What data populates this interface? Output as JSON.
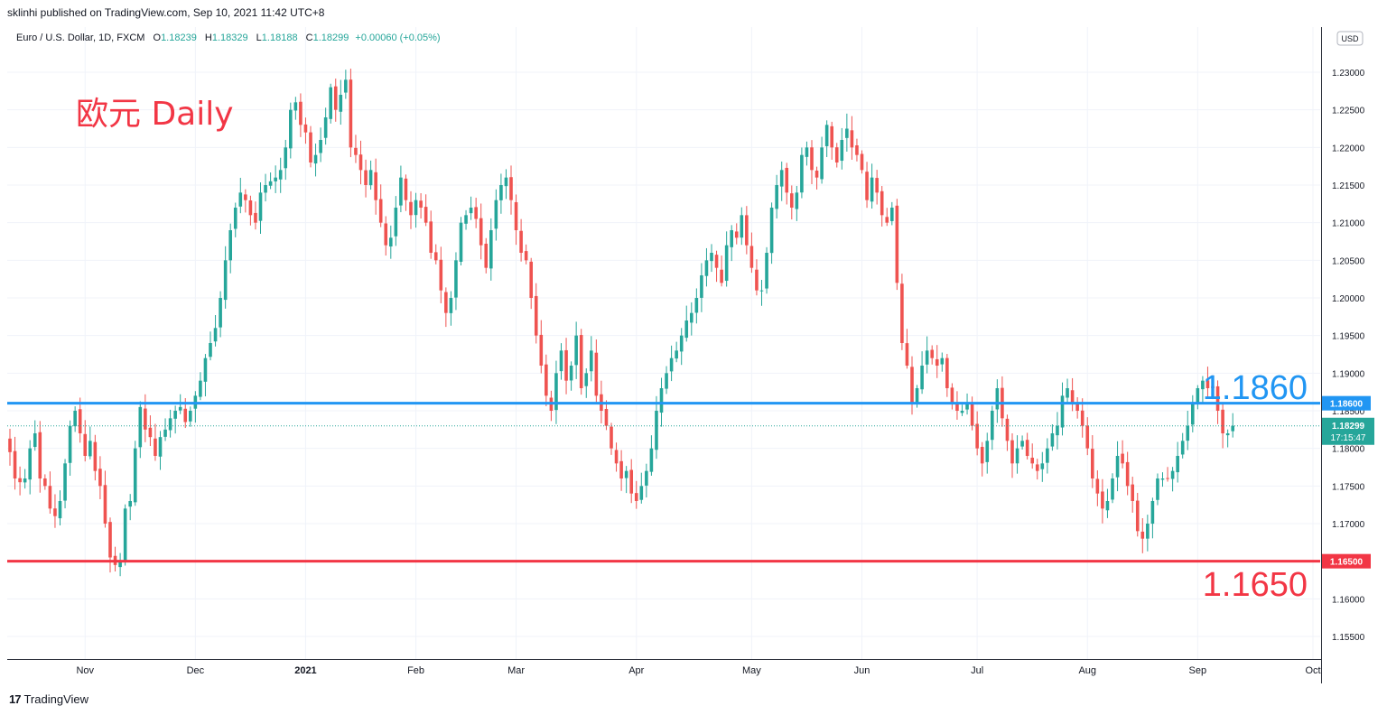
{
  "header": {
    "published": "sklinhi published on TradingView.com, Sep 10, 2021 11:42 UTC+8"
  },
  "legend": {
    "symbol": "Euro / U.S. Dollar, 1D, FXCM",
    "open_label": "O",
    "open": "1.18239",
    "high_label": "H",
    "high": "1.18329",
    "low_label": "L",
    "low": "1.18188",
    "close_label": "C",
    "close": "1.18299",
    "change": "+0.00060 (+0.05%)"
  },
  "footer": {
    "brand": "TradingView",
    "logo_mark": "17"
  },
  "currency_button": "USD",
  "colors": {
    "up": "#26a69a",
    "down": "#ef5350",
    "blue_line": "#2196f3",
    "red_line": "#f23645",
    "label_green": "#26a69a",
    "grid": "#f0f3fa",
    "axis_text": "#131722"
  },
  "chart_data": {
    "type": "candlestick",
    "title": "欧元 Daily",
    "yaxis": {
      "min": 1.152,
      "max": 1.236,
      "ticks": [
        "1.15500",
        "1.16000",
        "1.16500",
        "1.17000",
        "1.17500",
        "1.18000",
        "1.18500",
        "1.19000",
        "1.19500",
        "1.20000",
        "1.20500",
        "1.21000",
        "1.21500",
        "1.22000",
        "1.22500",
        "1.23000"
      ]
    },
    "xaxis": {
      "labels": [
        "Nov",
        "Dec",
        "2021",
        "Feb",
        "Mar",
        "Apr",
        "May",
        "Jun",
        "Jul",
        "Aug",
        "Sep",
        "Oct"
      ],
      "label_index": [
        15,
        37,
        59,
        81,
        101,
        125,
        148,
        170,
        193,
        215,
        237,
        260
      ]
    },
    "horizontal_lines": [
      {
        "value": 1.186,
        "label": "1.1860",
        "axis_label": "1.18600",
        "color": "#2196f3"
      },
      {
        "value": 1.165,
        "label": "1.1650",
        "axis_label": "1.16500",
        "color": "#f23645"
      }
    ],
    "last_price": {
      "value": 1.18299,
      "label": "1.18299",
      "countdown": "17:15:47"
    },
    "closes": [
      1.1795,
      1.176,
      1.1755,
      1.176,
      1.18,
      1.182,
      1.176,
      1.175,
      1.172,
      1.171,
      1.173,
      1.178,
      1.183,
      1.185,
      1.182,
      1.179,
      1.181,
      1.177,
      1.175,
      1.17,
      1.1655,
      1.1645,
      1.165,
      1.172,
      1.173,
      1.18,
      1.1855,
      1.1825,
      1.1815,
      1.179,
      1.1815,
      1.1825,
      1.184,
      1.185,
      1.1855,
      1.1835,
      1.185,
      1.187,
      1.189,
      1.192,
      1.194,
      1.196,
      1.2,
      1.205,
      1.209,
      1.212,
      1.214,
      1.213,
      1.211,
      1.21,
      1.214,
      1.215,
      1.2155,
      1.216,
      1.217,
      1.22,
      1.225,
      1.226,
      1.223,
      1.222,
      1.218,
      1.219,
      1.221,
      1.224,
      1.228,
      1.225,
      1.227,
      1.229,
      1.22,
      1.219,
      1.217,
      1.215,
      1.217,
      1.213,
      1.21,
      1.207,
      1.208,
      1.212,
      1.216,
      1.213,
      1.211,
      1.213,
      1.212,
      1.21,
      1.206,
      1.205,
      1.201,
      1.198,
      1.2,
      1.205,
      1.21,
      1.211,
      1.212,
      1.2105,
      1.207,
      1.204,
      1.209,
      1.213,
      1.215,
      1.216,
      1.213,
      1.209,
      1.206,
      1.205,
      1.2,
      1.195,
      1.191,
      1.187,
      1.185,
      1.19,
      1.193,
      1.189,
      1.191,
      1.195,
      1.188,
      1.19,
      1.193,
      1.187,
      1.185,
      1.183,
      1.18,
      1.178,
      1.176,
      1.177,
      1.174,
      1.173,
      1.175,
      1.177,
      1.18,
      1.185,
      1.188,
      1.19,
      1.192,
      1.193,
      1.195,
      1.197,
      1.198,
      1.2,
      1.203,
      1.205,
      1.206,
      1.204,
      1.202,
      1.207,
      1.209,
      1.208,
      1.211,
      1.207,
      1.204,
      1.201,
      1.201,
      1.206,
      1.212,
      1.215,
      1.217,
      1.214,
      1.212,
      1.214,
      1.219,
      1.22,
      1.217,
      1.216,
      1.22,
      1.223,
      1.22,
      1.218,
      1.221,
      1.2225,
      1.22,
      1.219,
      1.217,
      1.213,
      1.216,
      1.214,
      1.211,
      1.21,
      1.212,
      1.202,
      1.194,
      1.191,
      1.186,
      1.188,
      1.191,
      1.193,
      1.192,
      1.191,
      1.192,
      1.188,
      1.186,
      1.185,
      1.185,
      1.186,
      1.183,
      1.18,
      1.178,
      1.181,
      1.185,
      1.188,
      1.184,
      1.181,
      1.178,
      1.18,
      1.181,
      1.179,
      1.178,
      1.177,
      1.178,
      1.18,
      1.182,
      1.183,
      1.187,
      1.188,
      1.186,
      1.185,
      1.183,
      1.18,
      1.176,
      1.174,
      1.172,
      1.173,
      1.176,
      1.179,
      1.178,
      1.175,
      1.173,
      1.169,
      1.168,
      1.17,
      1.173,
      1.176,
      1.176,
      1.176,
      1.177,
      1.179,
      1.181,
      1.183,
      1.186,
      1.188,
      1.189,
      1.188,
      1.188,
      1.185,
      1.182,
      1.182,
      1.183
    ]
  }
}
